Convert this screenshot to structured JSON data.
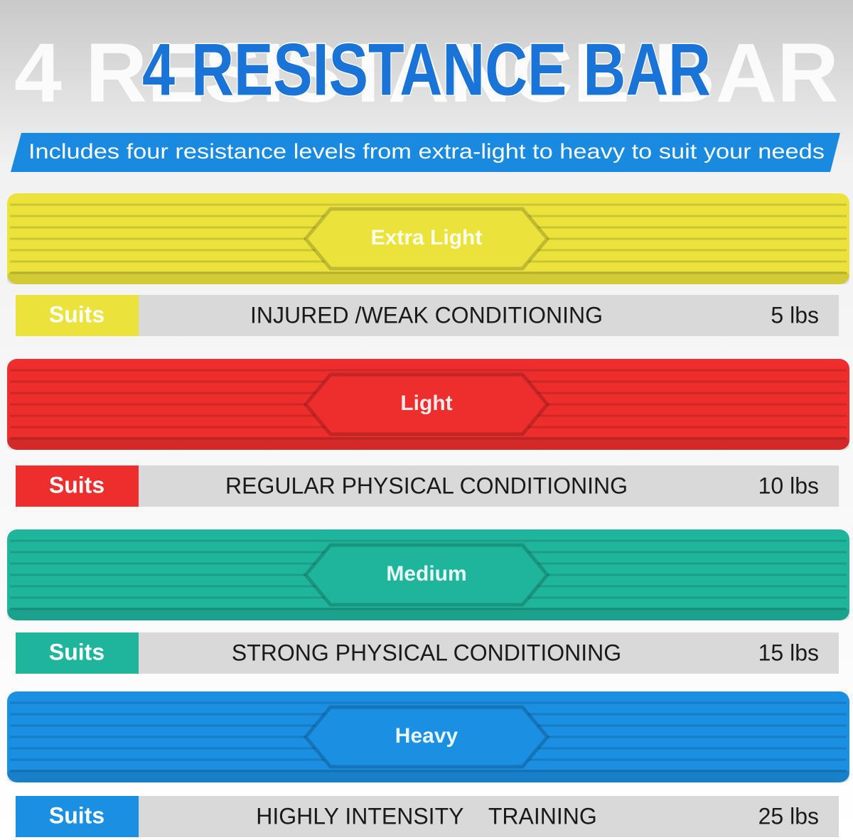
{
  "header": {
    "backdrop": "4 RESISTANCE BAR",
    "title": "4 RESISTANCE BAR",
    "subtitle": "Includes four resistance levels from extra-light to heavy to suit your needs"
  },
  "bars": [
    {
      "label": "Extra Light",
      "color": "#ebe33c",
      "suits": "Suits",
      "description": "INJURED /WEAK CONDITIONING",
      "weight": "5 lbs"
    },
    {
      "label": "Light",
      "color": "#ee2d2d",
      "suits": "Suits",
      "description": "REGULAR PHYSICAL CONDITIONING",
      "weight": "10 lbs"
    },
    {
      "label": "Medium",
      "color": "#1fb59c",
      "suits": "Suits",
      "description": "STRONG PHYSICAL CONDITIONING",
      "weight": "15 lbs"
    },
    {
      "label": "Heavy",
      "color": "#1b8fe2",
      "suits": "Suits",
      "description": "HIGHLY INTENSITY    TRAINING",
      "weight": "25 lbs"
    }
  ]
}
